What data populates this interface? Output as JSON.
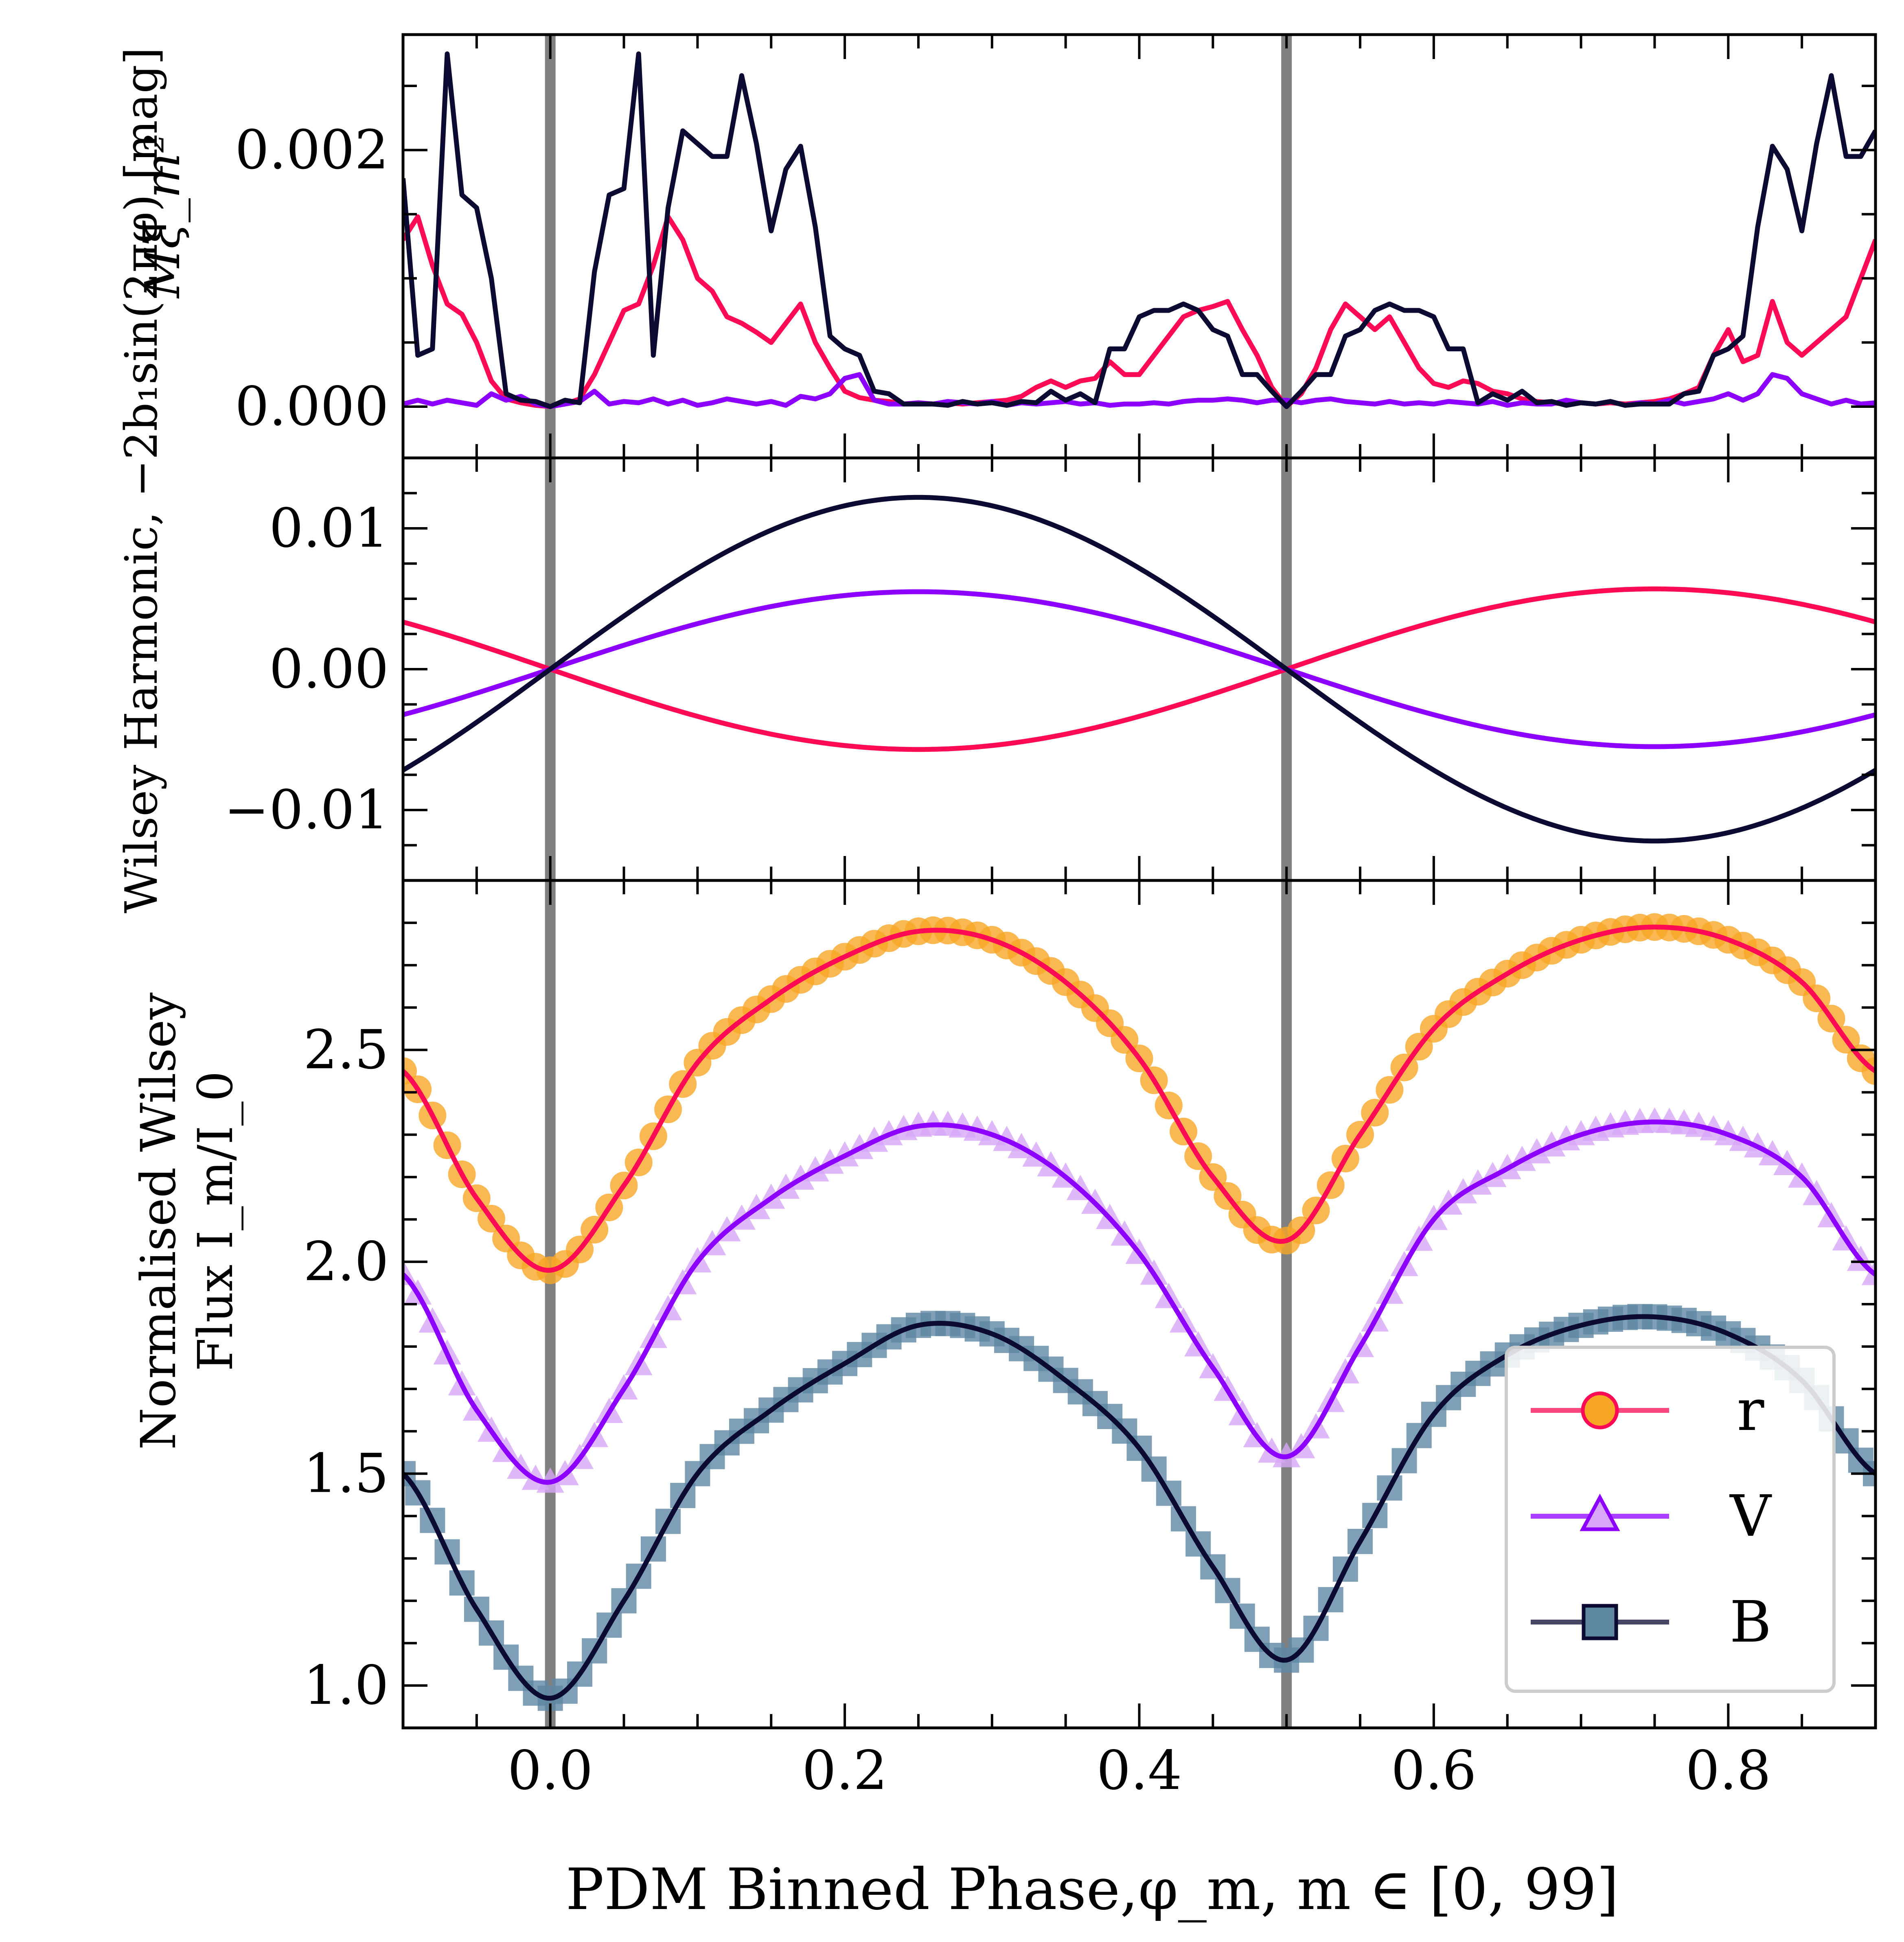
{
  "chart_data": [
    {
      "type": "line",
      "panel": "top",
      "ylabel": "Mξ_m²",
      "ylim": [
        -0.0004,
        0.0029
      ],
      "yticks": [
        0.0,
        0.002
      ],
      "ytick_labels": [
        "0.000",
        "0.002"
      ],
      "x": [
        -0.1,
        -0.09,
        -0.08,
        -0.07,
        -0.06,
        -0.05,
        -0.04,
        -0.03,
        -0.02,
        -0.01,
        0.0,
        0.01,
        0.02,
        0.03,
        0.04,
        0.05,
        0.06,
        0.07,
        0.08,
        0.09,
        0.1,
        0.11,
        0.12,
        0.13,
        0.14,
        0.15,
        0.16,
        0.17,
        0.18,
        0.19,
        0.2,
        0.21,
        0.22,
        0.23,
        0.24,
        0.25,
        0.26,
        0.27,
        0.28,
        0.29,
        0.3,
        0.31,
        0.32,
        0.33,
        0.34,
        0.35,
        0.36,
        0.37,
        0.38,
        0.39,
        0.4,
        0.41,
        0.42,
        0.43,
        0.44,
        0.45,
        0.46,
        0.47,
        0.48,
        0.49,
        0.5,
        0.51,
        0.52,
        0.53,
        0.54,
        0.55,
        0.56,
        0.57,
        0.58,
        0.59,
        0.6,
        0.61,
        0.62,
        0.63,
        0.64,
        0.65,
        0.66,
        0.67,
        0.68,
        0.69,
        0.7,
        0.71,
        0.72,
        0.73,
        0.74,
        0.75,
        0.76,
        0.77,
        0.78,
        0.79,
        0.8,
        0.81,
        0.82,
        0.83,
        0.84,
        0.85,
        0.86,
        0.87,
        0.88,
        0.89,
        0.9
      ],
      "series": [
        {
          "name": "r",
          "color": "#ff0a54",
          "values": [
            0.0013,
            0.00148,
            0.0011,
            0.0008,
            0.00072,
            0.0005,
            0.0002,
            6e-05,
            3e-05,
            1e-05,
            0.0,
            2e-05,
            6e-05,
            0.00025,
            0.0005,
            0.00075,
            0.0008,
            0.0011,
            0.00148,
            0.0013,
            0.001,
            0.0009,
            0.0007,
            0.00065,
            0.00058,
            0.0005,
            0.00065,
            0.0008,
            0.0005,
            0.0003,
            0.00012,
            7e-05,
            5e-05,
            4e-05,
            2e-05,
            3e-05,
            2e-05,
            3e-05,
            2e-05,
            3e-05,
            4e-05,
            5e-05,
            8e-05,
            0.00015,
            0.0002,
            0.00015,
            0.0002,
            0.00022,
            0.00035,
            0.00025,
            0.00025,
            0.0004,
            0.00055,
            0.0007,
            0.00075,
            0.00078,
            0.00082,
            0.0006,
            0.0004,
            0.00015,
            0.0,
            0.0001,
            0.0003,
            0.0006,
            0.0008,
            0.0007,
            0.0006,
            0.0007,
            0.0005,
            0.0003,
            0.00018,
            0.00015,
            0.0002,
            0.00018,
            0.00012,
            0.0001,
            6e-05,
            4e-05,
            3e-05,
            2e-05,
            3e-05,
            2e-05,
            3e-05,
            2e-05,
            3e-05,
            4e-05,
            6e-05,
            0.0001,
            0.00015,
            0.0004,
            0.0006,
            0.00035,
            0.0004,
            0.00082,
            0.0005,
            0.0004,
            0.0005,
            0.0006,
            0.0007,
            0.001,
            0.0013
          ]
        },
        {
          "name": "V",
          "color": "#8c00ff",
          "values": [
            2e-05,
            5e-05,
            2e-05,
            5e-05,
            3e-05,
            1e-05,
            0.0001,
            5e-05,
            8e-05,
            2e-05,
            0.0,
            2e-05,
            4e-05,
            0.00012,
            2e-05,
            4e-05,
            3e-05,
            6e-05,
            2e-05,
            5e-05,
            1e-05,
            3e-05,
            6e-05,
            4e-05,
            2e-05,
            4e-05,
            1e-05,
            8e-05,
            6e-05,
            0.0001,
            0.00022,
            0.00025,
            5e-05,
            2e-05,
            2e-05,
            3e-05,
            2e-05,
            4e-05,
            3e-05,
            2e-05,
            4e-05,
            1e-05,
            3e-05,
            2e-05,
            3e-05,
            4e-05,
            2e-05,
            3e-05,
            1e-05,
            2e-05,
            2e-05,
            3e-05,
            2e-05,
            4e-05,
            5e-05,
            5e-05,
            6e-05,
            5e-05,
            3e-05,
            5e-05,
            5e-05,
            3e-05,
            5e-05,
            6e-05,
            4e-05,
            3e-05,
            2e-05,
            4e-05,
            2e-05,
            3e-05,
            2e-05,
            4e-05,
            3e-05,
            2e-05,
            4e-05,
            1e-05,
            3e-05,
            2e-05,
            2e-05,
            5e-05,
            3e-05,
            2e-05,
            4e-05,
            1e-05,
            3e-05,
            2e-05,
            5e-05,
            2e-05,
            4e-05,
            6e-05,
            0.0001,
            5e-05,
            0.0001,
            0.00025,
            0.00022,
            0.0001,
            6e-05,
            2e-05,
            5e-05,
            2e-05,
            3e-05
          ]
        },
        {
          "name": "B",
          "color": "#0a0a32",
          "values": [
            0.00178,
            0.0004,
            0.00045,
            0.00275,
            0.00165,
            0.00155,
            0.001,
            0.0001,
            5e-05,
            4e-05,
            0.0,
            5e-05,
            3e-05,
            0.00105,
            0.00165,
            0.0017,
            0.00275,
            0.0004,
            0.00155,
            0.00215,
            0.00205,
            0.00195,
            0.00195,
            0.00258,
            0.00205,
            0.00137,
            0.00185,
            0.00203,
            0.0014,
            0.00055,
            0.00045,
            0.0004,
            0.00012,
            0.0001,
            2e-05,
            2e-05,
            2e-05,
            1e-05,
            4e-05,
            2e-05,
            3e-05,
            1e-05,
            4e-05,
            3e-05,
            0.00012,
            5e-05,
            0.0001,
            3e-05,
            0.00045,
            0.00045,
            0.0007,
            0.00075,
            0.00075,
            0.0008,
            0.00075,
            0.0006,
            0.00055,
            0.00025,
            0.00025,
            0.00012,
            0.0,
            0.00012,
            0.00025,
            0.00025,
            0.00055,
            0.0006,
            0.00075,
            0.0008,
            0.00075,
            0.00075,
            0.0007,
            0.00045,
            0.00045,
            3e-05,
            0.0001,
            5e-05,
            0.00012,
            3e-05,
            4e-05,
            1e-05,
            3e-05,
            2e-05,
            4e-05,
            1e-05,
            2e-05,
            2e-05,
            2e-05,
            0.0001,
            0.00012,
            0.0004,
            0.00045,
            0.00055,
            0.0014,
            0.00203,
            0.00185,
            0.00137,
            0.00205,
            0.00258,
            0.00195,
            0.00195,
            0.00215
          ]
        }
      ]
    },
    {
      "type": "line",
      "panel": "middle",
      "ylabel": "Wilsey Harmonic, −2b₁sin(2πφ) [mag]",
      "ylim": [
        -0.015,
        0.015
      ],
      "yticks": [
        -0.01,
        0.0,
        0.01
      ],
      "ytick_labels": [
        "−0.01",
        "0.00",
        "0.01"
      ],
      "function": "amplitude * sin(2*pi*x)",
      "xrange": [
        -0.1,
        0.9
      ],
      "series": [
        {
          "name": "r",
          "color": "#ff0a54",
          "amplitude": -0.0057
        },
        {
          "name": "V",
          "color": "#8c00ff",
          "amplitude": 0.0055
        },
        {
          "name": "B",
          "color": "#0a0a32",
          "amplitude": 0.0122
        }
      ]
    },
    {
      "type": "line",
      "panel": "bottom",
      "ylabel_line1": "Normalised Wilsey",
      "ylabel_line2": "Flux I_m/I_0",
      "xlabel": "PDM Binned Phase,φ_m, m ∈ [0, 99]",
      "ylim": [
        0.9,
        2.9
      ],
      "yticks": [
        1.0,
        1.5,
        2.0,
        2.5
      ],
      "ytick_labels": [
        "1.0",
        "1.5",
        "2.0",
        "2.5"
      ],
      "xlim": [
        -0.1,
        0.9
      ],
      "xticks": [
        0.0,
        0.2,
        0.4,
        0.6,
        0.8
      ],
      "xtick_labels": [
        "0.0",
        "0.2",
        "0.4",
        "0.6",
        "0.8"
      ],
      "x": [
        -0.1,
        -0.05,
        0.0,
        0.05,
        0.1,
        0.15,
        0.2,
        0.25,
        0.3,
        0.35,
        0.4,
        0.45,
        0.5,
        0.55,
        0.6,
        0.65,
        0.7,
        0.75,
        0.8,
        0.85,
        0.9
      ],
      "series": [
        {
          "name": "r",
          "color": "#ff0a54",
          "marker_color": "#f7a625",
          "marker": "circle",
          "values": [
            2.45,
            2.15,
            1.98,
            2.18,
            2.47,
            2.62,
            2.72,
            2.78,
            2.76,
            2.66,
            2.48,
            2.2,
            2.05,
            2.3,
            2.55,
            2.68,
            2.76,
            2.79,
            2.76,
            2.66,
            2.45
          ]
        },
        {
          "name": "V",
          "color": "#8c00ff",
          "marker_color": "#d7a6f7",
          "marker": "triangle",
          "values": [
            1.97,
            1.65,
            1.48,
            1.7,
            2.0,
            2.15,
            2.25,
            2.32,
            2.3,
            2.2,
            2.02,
            1.75,
            1.54,
            1.8,
            2.1,
            2.22,
            2.3,
            2.33,
            2.3,
            2.2,
            1.97
          ]
        },
        {
          "name": "B",
          "color": "#0a0a32",
          "marker_color": "#5e87a2",
          "marker": "square",
          "values": [
            1.5,
            1.18,
            0.97,
            1.2,
            1.5,
            1.65,
            1.76,
            1.85,
            1.83,
            1.72,
            1.56,
            1.28,
            1.06,
            1.34,
            1.64,
            1.78,
            1.85,
            1.87,
            1.83,
            1.72,
            1.5
          ]
        }
      ],
      "legend": {
        "placement": "bottom-right",
        "entries": [
          "r",
          "V",
          "B"
        ]
      }
    }
  ],
  "vertical_lines": [
    0.0,
    0.5
  ],
  "vertical_line_color": "#808080"
}
